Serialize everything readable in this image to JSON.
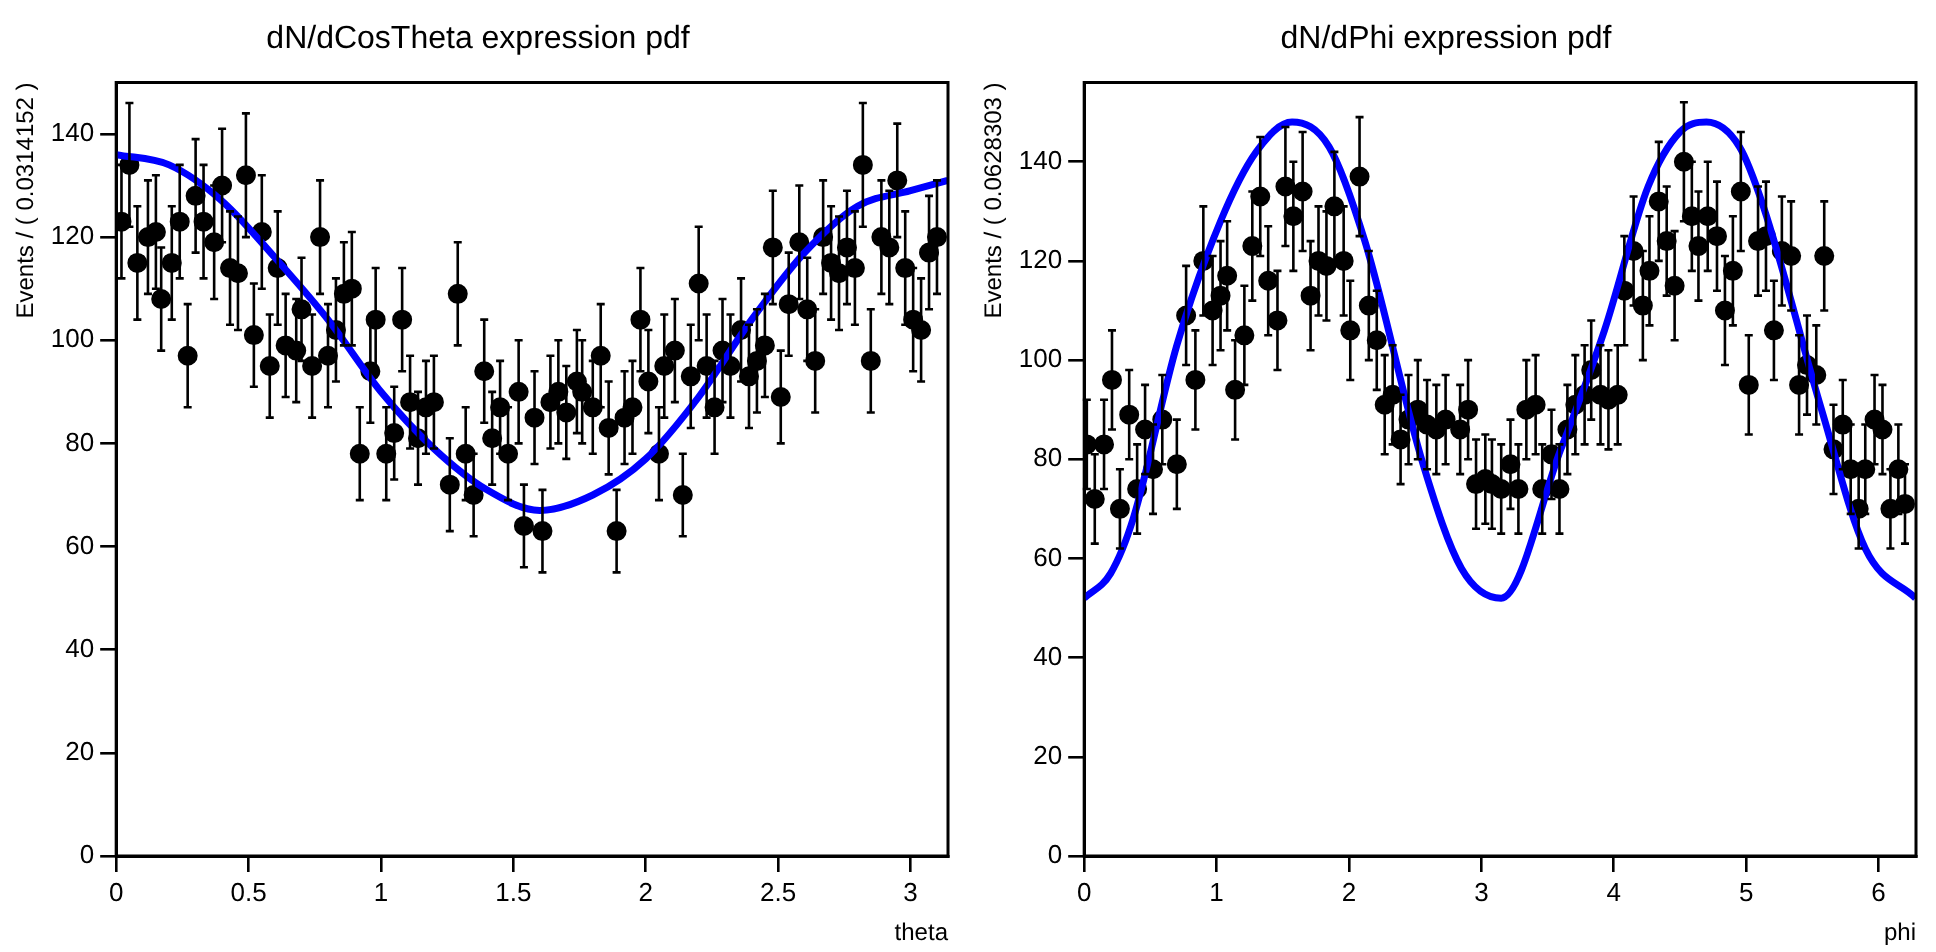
{
  "chart_data": [
    {
      "type": "scatter",
      "title": "dN/dCosTheta expression pdf",
      "xlabel": "theta",
      "ylabel": "Events / ( 0.0314152 )",
      "xlim": [
        0,
        3.1416
      ],
      "xticks": [
        0,
        0.5,
        1,
        1.5,
        2,
        2.5,
        3
      ],
      "ylim": [
        0,
        150
      ],
      "yticks": [
        0,
        20,
        40,
        60,
        80,
        100,
        120,
        140
      ],
      "grid": false,
      "series": [
        {
          "type": "scatter",
          "color": "#000000",
          "marker": "circle",
          "x": [
            0.02,
            0.05,
            0.08,
            0.12,
            0.15,
            0.17,
            0.21,
            0.24,
            0.27,
            0.3,
            0.33,
            0.37,
            0.4,
            0.43,
            0.46,
            0.49,
            0.52,
            0.55,
            0.58,
            0.61,
            0.64,
            0.68,
            0.7,
            0.74,
            0.77,
            0.8,
            0.83,
            0.86,
            0.89,
            0.92,
            0.96,
            0.98,
            1.02,
            1.05,
            1.08,
            1.11,
            1.14,
            1.17,
            1.2,
            1.26,
            1.29,
            1.32,
            1.35,
            1.39,
            1.42,
            1.45,
            1.48,
            1.52,
            1.54,
            1.58,
            1.61,
            1.64,
            1.67,
            1.7,
            1.74,
            1.76,
            1.8,
            1.83,
            1.86,
            1.89,
            1.92,
            1.95,
            1.98,
            2.01,
            2.05,
            2.07,
            2.11,
            2.14,
            2.17,
            2.2,
            2.23,
            2.26,
            2.29,
            2.32,
            2.36,
            2.39,
            2.42,
            2.45,
            2.48,
            2.51,
            2.54,
            2.58,
            2.61,
            2.64,
            2.67,
            2.7,
            2.73,
            2.76,
            2.79,
            2.82,
            2.85,
            2.89,
            2.92,
            2.95,
            2.98,
            3.01,
            3.04,
            3.07,
            3.1
          ],
          "values": [
            123,
            134,
            115,
            120,
            121,
            108,
            115,
            123,
            97,
            128,
            123,
            119,
            130,
            114,
            113,
            132,
            101,
            121,
            95,
            114,
            99,
            98,
            106,
            95,
            120,
            97,
            102,
            109,
            110,
            78,
            94,
            104,
            78,
            82,
            104,
            88,
            81,
            87,
            88,
            72,
            109,
            78,
            70,
            94,
            81,
            87,
            78,
            90,
            64,
            85,
            63,
            88,
            90,
            86,
            92,
            90,
            87,
            97,
            83,
            63,
            85,
            87,
            104,
            92,
            78,
            95,
            98,
            70,
            93,
            111,
            95,
            87,
            98,
            95,
            102,
            93,
            96,
            99,
            118,
            89,
            107,
            119,
            106,
            96,
            120,
            115,
            113,
            118,
            114,
            134,
            96,
            120,
            118,
            131,
            114,
            104,
            102,
            117,
            120
          ],
          "errors": [
            11,
            12,
            11,
            11,
            11,
            10,
            11,
            11,
            10,
            11,
            11,
            11,
            11,
            11,
            11,
            12,
            10,
            11,
            10,
            11,
            10,
            10,
            10,
            10,
            11,
            10,
            10,
            10,
            11,
            9,
            10,
            10,
            9,
            9,
            10,
            9,
            9,
            9,
            9,
            9,
            10,
            9,
            8,
            10,
            9,
            9,
            9,
            10,
            8,
            9,
            8,
            9,
            10,
            9,
            10,
            10,
            9,
            10,
            9,
            8,
            9,
            9,
            10,
            10,
            9,
            10,
            10,
            8,
            10,
            11,
            10,
            9,
            10,
            10,
            10,
            10,
            10,
            10,
            11,
            9,
            10,
            11,
            10,
            10,
            11,
            11,
            11,
            11,
            11,
            12,
            10,
            11,
            11,
            11,
            11,
            10,
            10,
            11,
            11
          ]
        },
        {
          "type": "line",
          "color": "#0000ff",
          "marker": "none",
          "x": [
            0,
            0.2,
            0.4,
            0.6,
            0.8,
            1.0,
            1.2,
            1.4,
            1.6,
            1.8,
            2.0,
            2.2,
            2.4,
            2.6,
            2.8,
            3.0,
            3.14
          ],
          "values": [
            136,
            134,
            127,
            116,
            104,
            90,
            79,
            71,
            67,
            70,
            77,
            89,
            104,
            117,
            126,
            129,
            131
          ]
        }
      ]
    },
    {
      "type": "scatter",
      "title": "dN/dPhi expression pdf",
      "xlabel": "phi",
      "ylabel": "Events / ( 0.0628303 )",
      "xlim": [
        0,
        6.2832
      ],
      "xticks": [
        0,
        1,
        2,
        3,
        4,
        5,
        6
      ],
      "ylim": [
        0,
        156
      ],
      "yticks": [
        0,
        20,
        40,
        60,
        80,
        100,
        120,
        140
      ],
      "grid": false,
      "series": [
        {
          "type": "scatter",
          "color": "#000000",
          "marker": "circle",
          "x": [
            0.02,
            0.08,
            0.15,
            0.21,
            0.27,
            0.34,
            0.4,
            0.46,
            0.52,
            0.59,
            0.7,
            0.77,
            0.84,
            0.9,
            0.97,
            1.03,
            1.08,
            1.14,
            1.21,
            1.27,
            1.33,
            1.39,
            1.46,
            1.52,
            1.58,
            1.65,
            1.71,
            1.77,
            1.83,
            1.89,
            1.96,
            2.01,
            2.08,
            2.15,
            2.21,
            2.27,
            2.33,
            2.39,
            2.45,
            2.52,
            2.59,
            2.66,
            2.73,
            2.84,
            2.9,
            2.96,
            3.03,
            3.08,
            3.15,
            3.22,
            3.28,
            3.34,
            3.41,
            3.46,
            3.53,
            3.59,
            3.65,
            3.71,
            3.78,
            3.83,
            3.9,
            3.96,
            4.03,
            4.08,
            4.15,
            4.22,
            4.27,
            4.34,
            4.4,
            4.46,
            4.53,
            4.59,
            4.64,
            4.71,
            4.78,
            4.84,
            4.9,
            4.96,
            5.02,
            5.09,
            5.15,
            5.21,
            5.27,
            5.34,
            5.4,
            5.46,
            5.53,
            5.59,
            5.66,
            5.73,
            5.79,
            5.85,
            5.9,
            5.97,
            6.03,
            6.09,
            6.15,
            6.2
          ],
          "values": [
            83,
            72,
            83,
            96,
            70,
            89,
            74,
            86,
            78,
            88,
            79,
            109,
            96,
            120,
            110,
            113,
            117,
            94,
            105,
            123,
            133,
            116,
            108,
            135,
            129,
            134,
            113,
            120,
            119,
            131,
            120,
            106,
            137,
            111,
            104,
            91,
            93,
            84,
            88,
            90,
            87,
            86,
            88,
            86,
            90,
            75,
            76,
            75,
            74,
            79,
            74,
            90,
            91,
            74,
            81,
            74,
            86,
            91,
            93,
            98,
            93,
            92,
            93,
            114,
            122,
            111,
            118,
            132,
            124,
            115,
            140,
            129,
            123,
            129,
            125,
            110,
            118,
            134,
            95,
            124,
            125,
            106,
            122,
            121,
            95,
            99,
            97,
            121,
            82,
            87,
            78,
            70,
            78,
            88,
            86,
            70,
            78,
            71
          ],
          "errors": [
            9,
            9,
            9,
            10,
            8,
            9,
            9,
            9,
            9,
            9,
            9,
            10,
            10,
            11,
            11,
            11,
            11,
            10,
            10,
            11,
            12,
            11,
            10,
            12,
            11,
            12,
            11,
            11,
            11,
            11,
            11,
            10,
            12,
            11,
            10,
            10,
            10,
            9,
            9,
            10,
            9,
            9,
            9,
            9,
            10,
            9,
            9,
            9,
            9,
            9,
            9,
            10,
            10,
            9,
            9,
            9,
            9,
            10,
            10,
            10,
            10,
            10,
            10,
            11,
            11,
            11,
            11,
            12,
            11,
            11,
            12,
            11,
            11,
            11,
            11,
            11,
            11,
            12,
            10,
            11,
            11,
            10,
            11,
            11,
            10,
            10,
            10,
            11,
            9,
            9,
            9,
            8,
            9,
            9,
            9,
            8,
            9,
            8
          ]
        },
        {
          "type": "line",
          "color": "#0000ff",
          "marker": "none",
          "x": [
            0,
            0.2,
            0.37,
            0.7,
            1.03,
            1.3,
            1.57,
            1.85,
            2.12,
            2.56,
            2.85,
            3.15,
            3.6,
            3.93,
            4.26,
            4.5,
            4.7,
            4.95,
            5.13,
            5.57,
            5.9,
            6.28
          ],
          "values": [
            52,
            57,
            68,
            103,
            128,
            142,
            148,
            143,
            124,
            79,
            58,
            52,
            82,
            106,
            135,
            146,
            148,
            143,
            131,
            90,
            62,
            52
          ]
        }
      ]
    }
  ]
}
